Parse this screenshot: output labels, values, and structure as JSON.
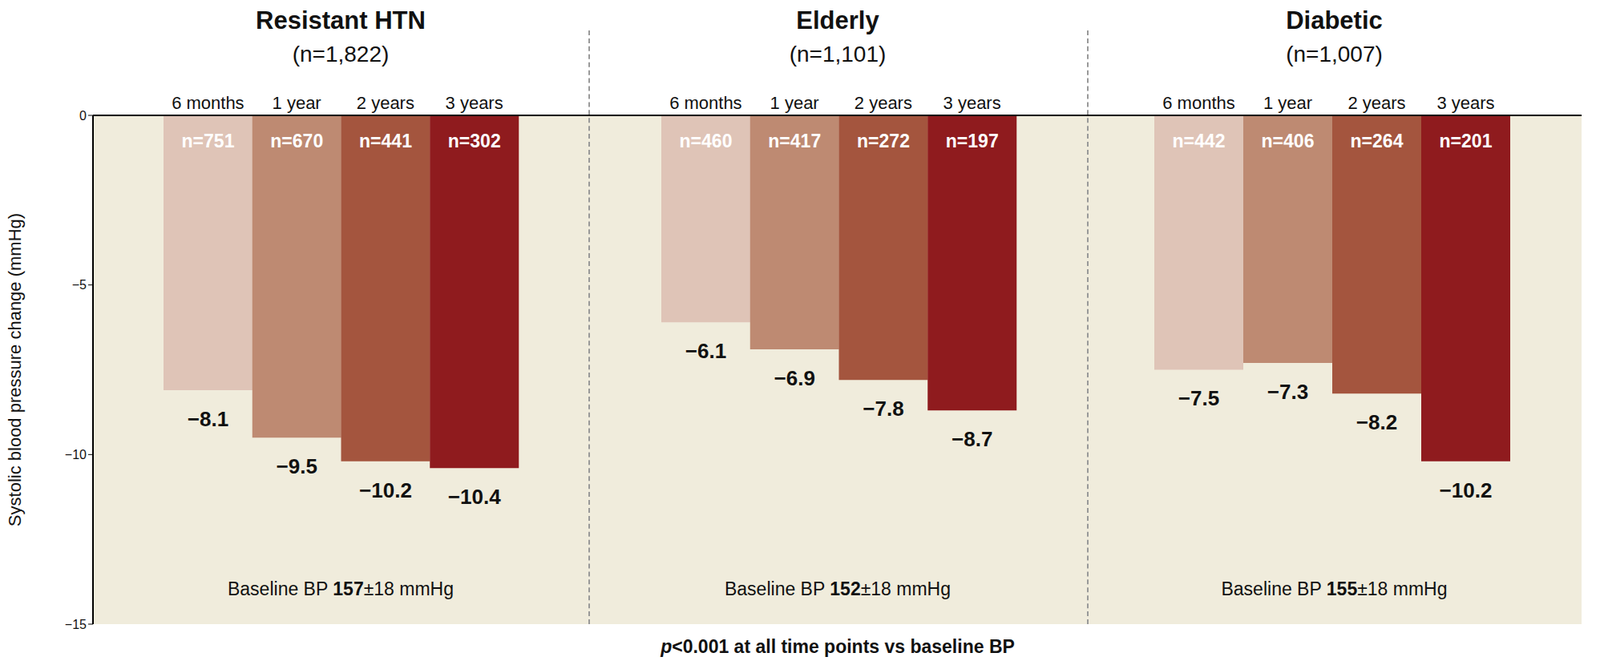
{
  "chart_data": {
    "type": "bar",
    "y_label": "Systolic blood pressure change (mmHg)",
    "ylim": [
      -15,
      0
    ],
    "yticks": [
      {
        "value": -15,
        "label": "−15"
      },
      {
        "value": -10,
        "label": "−10"
      },
      {
        "value": -5,
        "label": "−5"
      },
      0
    ],
    "data_labels": true,
    "footnote_italic": "p",
    "footnote": "<0.001 at all time points vs baseline BP",
    "panels": [
      {
        "title": "Resistant HTN",
        "subtitle": "(n=1,822)",
        "categories": [
          "6 months",
          "1 year",
          "2 years",
          "3 years"
        ],
        "values": [
          -8.1,
          -9.5,
          -10.2,
          -10.4
        ],
        "value_labels": [
          "−8.1",
          "−9.5",
          "−10.2",
          "−10.4"
        ],
        "bar_labels": [
          "n=751",
          "n=670",
          "n=441",
          "n=302"
        ],
        "colors": [
          "#dfc4b7",
          "#be8a72",
          "#a4553e",
          "#8f1b1e"
        ],
        "baseline_label": "Baseline BP",
        "baseline_value": "157",
        "baseline_unit": "±18 mmHg"
      },
      {
        "title": "Elderly",
        "subtitle": "(n=1,101)",
        "categories": [
          "6 months",
          "1 year",
          "2 years",
          "3 years"
        ],
        "values": [
          -6.1,
          -6.9,
          -7.8,
          -8.7
        ],
        "value_labels": [
          "−6.1",
          "−6.9",
          "−7.8",
          "−8.7"
        ],
        "bar_labels": [
          "n=460",
          "n=417",
          "n=272",
          "n=197"
        ],
        "colors": [
          "#dfc4b7",
          "#be8a72",
          "#a4553e",
          "#8f1b1e"
        ],
        "baseline_label": "Baseline BP",
        "baseline_value": "152",
        "baseline_unit": "±18 mmHg"
      },
      {
        "title": "Diabetic",
        "subtitle": "(n=1,007)",
        "categories": [
          "6 months",
          "1 year",
          "2 years",
          "3 years"
        ],
        "values": [
          -7.5,
          -7.3,
          -8.2,
          -10.2
        ],
        "value_labels": [
          "−7.5",
          "−7.3",
          "−8.2",
          "−10.2"
        ],
        "bar_labels": [
          "n=442",
          "n=406",
          "n=264",
          "n=201"
        ],
        "colors": [
          "#dfc4b7",
          "#be8a72",
          "#a4553e",
          "#8f1b1e"
        ],
        "baseline_label": "Baseline BP",
        "baseline_value": "155",
        "baseline_unit": "±18 mmHg"
      }
    ]
  }
}
